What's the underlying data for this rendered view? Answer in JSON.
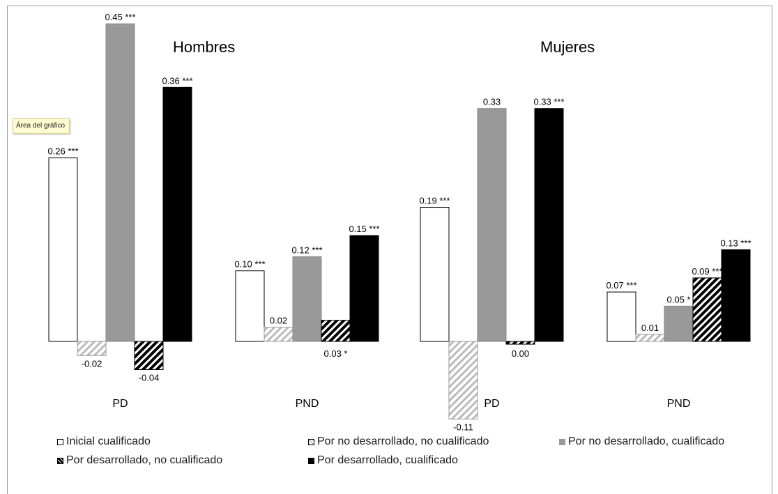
{
  "chart_data": {
    "type": "bar",
    "ylim": [
      -0.11,
      0.45
    ],
    "grid": false,
    "legend_placement": "bottom",
    "groups": [
      {
        "title": "Hombres",
        "categories": [
          "PD",
          "PND"
        ],
        "series_values": [
          [
            {
              "value": 0.26,
              "label": "0.26",
              "sig": "***"
            },
            {
              "value": 0.1,
              "label": "0.10",
              "sig": "***"
            }
          ],
          [
            {
              "value": -0.02,
              "label": "-0.02",
              "sig": ""
            },
            {
              "value": 0.02,
              "label": "0.02",
              "sig": ""
            }
          ],
          [
            {
              "value": 0.45,
              "label": "0.45",
              "sig": "***"
            },
            {
              "value": 0.12,
              "label": "0.12",
              "sig": "***"
            }
          ],
          [
            {
              "value": -0.04,
              "label": "-0.04",
              "sig": ""
            },
            {
              "value": 0.03,
              "label": "0.03",
              "sig": "*"
            }
          ],
          [
            {
              "value": 0.36,
              "label": "0.36",
              "sig": "***"
            },
            {
              "value": 0.15,
              "label": "0.15",
              "sig": "***"
            }
          ]
        ]
      },
      {
        "title": "Mujeres",
        "categories": [
          "PD",
          "PND"
        ],
        "series_values": [
          [
            {
              "value": 0.19,
              "label": "0.19",
              "sig": "***"
            },
            {
              "value": 0.07,
              "label": "0.07",
              "sig": "***"
            }
          ],
          [
            {
              "value": -0.11,
              "label": "-0.11",
              "sig": ""
            },
            {
              "value": 0.01,
              "label": "0.01",
              "sig": ""
            }
          ],
          [
            {
              "value": 0.33,
              "label": "0.33",
              "sig": ""
            },
            {
              "value": 0.05,
              "label": "0.05",
              "sig": "*"
            }
          ],
          [
            {
              "value": -0.004,
              "label": "0.00",
              "sig": ""
            },
            {
              "value": 0.09,
              "label": "0.09",
              "sig": "***"
            }
          ],
          [
            {
              "value": 0.33,
              "label": "0.33",
              "sig": "***"
            },
            {
              "value": 0.13,
              "label": "0.13",
              "sig": "***"
            }
          ]
        ]
      }
    ],
    "series": [
      {
        "name": "Inicial cualificado",
        "fill": "#ffffff",
        "pattern": "none"
      },
      {
        "name": "Por no desarrollado, no cualificado",
        "fill": "#ffffff",
        "pattern": "hatch-light"
      },
      {
        "name": "Por no desarrollado, cualificado",
        "fill": "#999999",
        "pattern": "none"
      },
      {
        "name": "Por desarrollado, no cualificado",
        "fill": "#ffffff",
        "pattern": "hatch-dark"
      },
      {
        "name": "Por desarrollado, cualificado",
        "fill": "#000000",
        "pattern": "none"
      }
    ]
  },
  "tooltip_text": "Área del gráfico",
  "colors": {
    "frame": "#9a9a9a",
    "light_hatch": "#bbbbbb",
    "gray": "#999999",
    "black": "#000000"
  }
}
